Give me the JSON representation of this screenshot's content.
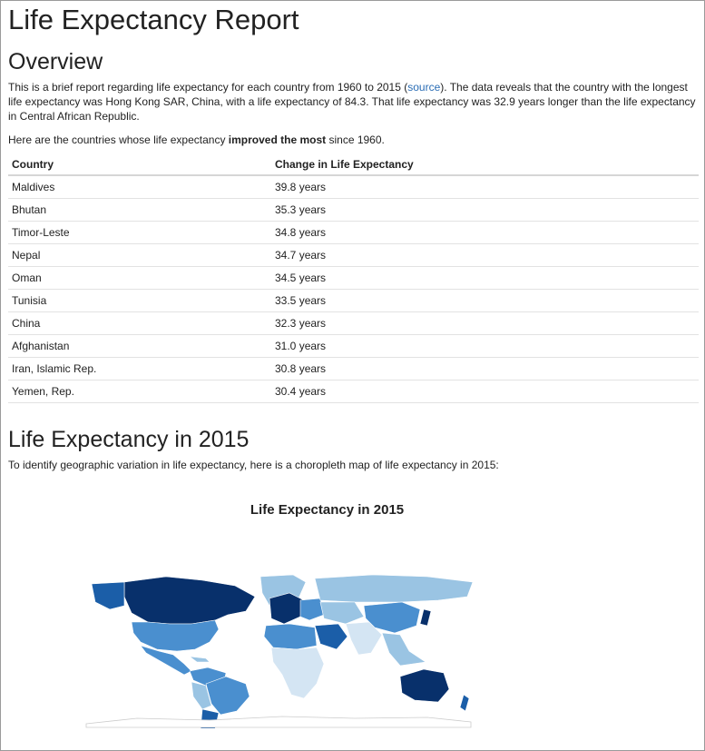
{
  "header": {
    "title": "Life Expectancy Report"
  },
  "overview": {
    "heading": "Overview",
    "p1_before": "This is a brief report regarding life expectancy for each country from 1960 to 2015 (",
    "p1_link": "source",
    "p1_after": "). The data reveals that the country with the longest life expectancy was Hong Kong SAR, China, with a life expectancy of 84.3. That life expectancy was 32.9 years longer than the life expectancy in Central African Republic.",
    "p2_before": "Here are the countries whose life expectancy ",
    "p2_bold": "improved the most",
    "p2_after": " since 1960."
  },
  "table": {
    "headers": [
      "Country",
      "Change in Life Expectancy"
    ],
    "rows": [
      [
        "Maldives",
        "39.8 years"
      ],
      [
        "Bhutan",
        "35.3 years"
      ],
      [
        "Timor-Leste",
        "34.8 years"
      ],
      [
        "Nepal",
        "34.7 years"
      ],
      [
        "Oman",
        "34.5 years"
      ],
      [
        "Tunisia",
        "33.5 years"
      ],
      [
        "China",
        "32.3 years"
      ],
      [
        "Afghanistan",
        "31.0 years"
      ],
      [
        "Iran, Islamic Rep.",
        "30.8 years"
      ],
      [
        "Yemen, Rep.",
        "30.4 years"
      ]
    ]
  },
  "section2": {
    "heading": "Life Expectancy in 2015",
    "text": "To identify geographic variation in life expectancy, here is a choropleth map of life expectancy in 2015:",
    "chart_title": "Life Expectancy in 2015"
  },
  "map_colors": {
    "ocean": "#ffffff",
    "darkest": "#08306b",
    "dark": "#1b5ea8",
    "mid": "#4a8fcf",
    "light": "#9ac4e3",
    "lightest": "#d4e5f3",
    "border": "#ffffff"
  }
}
